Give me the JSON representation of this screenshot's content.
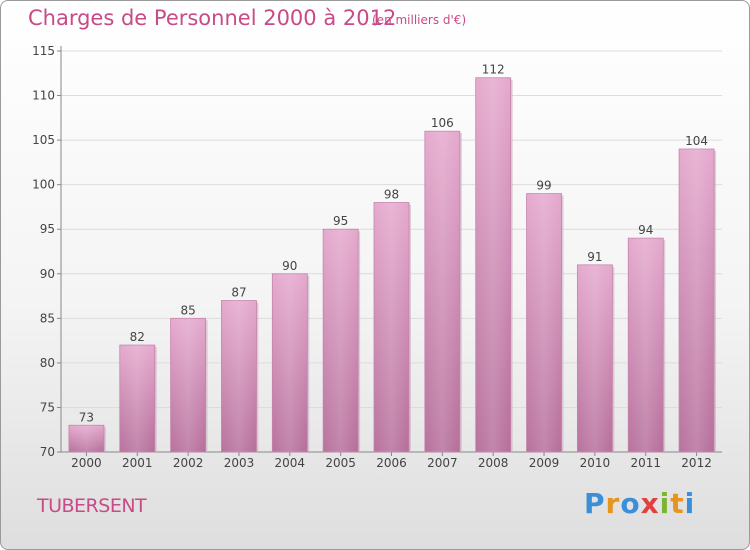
{
  "title": "Charges de Personnel 2000 à 2012",
  "subtitle": "(en milliers d'€)",
  "town": "TUBERSENT",
  "logo": {
    "letters": [
      {
        "char": "P",
        "color": "#3a8fd8"
      },
      {
        "char": "r",
        "color": "#e6951f"
      },
      {
        "char": "o",
        "color": "#3a8fd8"
      },
      {
        "char": "x",
        "color": "#e23f3f"
      },
      {
        "char": "i",
        "color": "#7ab52f"
      },
      {
        "char": "t",
        "color": "#e6951f"
      },
      {
        "char": "i",
        "color": "#3a8fd8"
      }
    ]
  },
  "chart_data": {
    "type": "bar",
    "title": "Charges de Personnel 2000 à 2012",
    "subtitle": "(en milliers d'€)",
    "categories": [
      "2000",
      "2001",
      "2002",
      "2003",
      "2004",
      "2005",
      "2006",
      "2007",
      "2008",
      "2009",
      "2010",
      "2011",
      "2012"
    ],
    "values": [
      73,
      82,
      85,
      87,
      90,
      95,
      98,
      106,
      112,
      99,
      91,
      94,
      104
    ],
    "ylim": [
      70,
      115
    ],
    "yticks": [
      70,
      75,
      80,
      85,
      90,
      95,
      100,
      105,
      110,
      115
    ],
    "grid": true,
    "bar_color": "#d88fb9",
    "xlabel": "",
    "ylabel": ""
  }
}
